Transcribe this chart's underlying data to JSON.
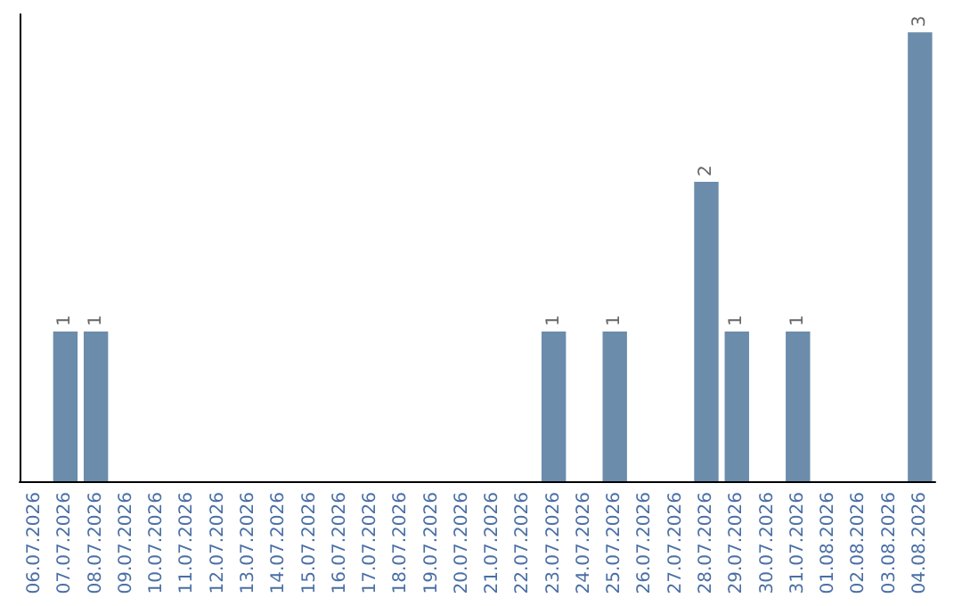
{
  "chart_data": {
    "type": "bar",
    "categories": [
      "06.07.2026",
      "07.07.2026",
      "08.07.2026",
      "09.07.2026",
      "10.07.2026",
      "11.07.2026",
      "12.07.2026",
      "13.07.2026",
      "14.07.2026",
      "15.07.2026",
      "16.07.2026",
      "17.07.2026",
      "18.07.2026",
      "19.07.2026",
      "20.07.2026",
      "21.07.2026",
      "22.07.2026",
      "23.07.2026",
      "24.07.2026",
      "25.07.2026",
      "26.07.2026",
      "27.07.2026",
      "28.07.2026",
      "29.07.2026",
      "30.07.2026",
      "31.07.2026",
      "01.08.2026",
      "02.08.2026",
      "03.08.2026",
      "04.08.2026"
    ],
    "values": [
      null,
      1,
      1,
      null,
      null,
      null,
      null,
      null,
      null,
      null,
      null,
      null,
      null,
      null,
      null,
      null,
      null,
      1,
      null,
      1,
      null,
      null,
      2,
      1,
      null,
      1,
      null,
      null,
      null,
      3
    ],
    "color": "#6b8cab",
    "data_labels": true
  }
}
